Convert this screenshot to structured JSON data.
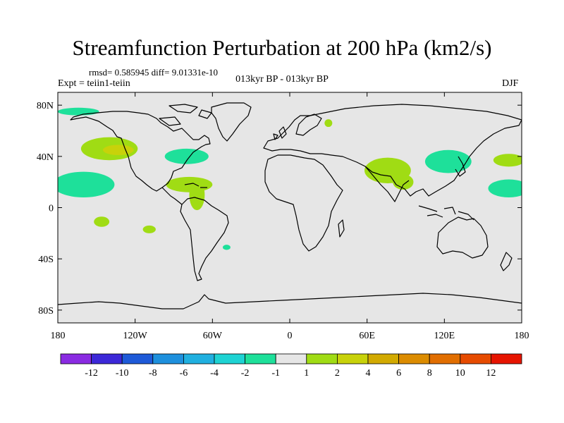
{
  "title": "Streamfunction Perturbation at 200 hPa (km2/s)",
  "stats_line": "rmsd= 0.585945 diff= 9.01331e-10",
  "left_label": "Expt = teiin1-teiin",
  "center_label": "013kyr BP - 013kyr BP",
  "right_label": "DJF",
  "map": {
    "projection": "cylindrical equidistant",
    "lon_range": [
      -180,
      180
    ],
    "lat_range": [
      -90,
      90
    ],
    "background_color": "#e6e6e6",
    "coastline_color": "#000000",
    "x_ticks": [
      {
        "lon": -180,
        "label": "180"
      },
      {
        "lon": -120,
        "label": "120W"
      },
      {
        "lon": -60,
        "label": "60W"
      },
      {
        "lon": 0,
        "label": "0"
      },
      {
        "lon": 60,
        "label": "60E"
      },
      {
        "lon": 120,
        "label": "120E"
      },
      {
        "lon": 180,
        "label": "180"
      }
    ],
    "y_ticks": [
      {
        "lat": 80,
        "label": "80N"
      },
      {
        "lat": 40,
        "label": "40N"
      },
      {
        "lat": 0,
        "label": "0"
      },
      {
        "lat": -40,
        "label": "40S"
      },
      {
        "lat": -80,
        "label": "80S"
      }
    ],
    "anomaly_patches": [
      {
        "lon": -164,
        "lat": 75,
        "rlon": 16,
        "rlat": 3,
        "level": -2
      },
      {
        "lon": -140,
        "lat": 46,
        "rlon": 22,
        "rlat": 9,
        "level": 2
      },
      {
        "lon": -133,
        "lat": 45,
        "rlon": 12,
        "rlat": 4,
        "level": 4
      },
      {
        "lon": -160,
        "lat": 18,
        "rlon": 24,
        "rlat": 10,
        "level": -2
      },
      {
        "lon": -80,
        "lat": 40,
        "rlon": 17,
        "rlat": 6,
        "level": -2
      },
      {
        "lon": -78,
        "lat": 18,
        "rlon": 18,
        "rlat": 6,
        "level": 2
      },
      {
        "lon": -72,
        "lat": 10,
        "rlon": 6,
        "rlat": 12,
        "level": 2
      },
      {
        "lon": -146,
        "lat": -11,
        "rlon": 6,
        "rlat": 4,
        "level": 2
      },
      {
        "lon": -109,
        "lat": -17,
        "rlon": 5,
        "rlat": 3,
        "level": 2
      },
      {
        "lon": -49,
        "lat": -31,
        "rlon": 3,
        "rlat": 2,
        "level": -2
      },
      {
        "lon": 30,
        "lat": 66,
        "rlon": 3,
        "rlat": 3,
        "level": 2
      },
      {
        "lon": 76,
        "lat": 29,
        "rlon": 18,
        "rlat": 10,
        "level": 2
      },
      {
        "lon": 88,
        "lat": 20,
        "rlon": 8,
        "rlat": 6,
        "level": 2
      },
      {
        "lon": 123,
        "lat": 36,
        "rlon": 18,
        "rlat": 9,
        "level": -2
      },
      {
        "lon": 170,
        "lat": 37,
        "rlon": 12,
        "rlat": 5,
        "level": 2
      },
      {
        "lon": 170,
        "lat": 15,
        "rlon": 16,
        "rlat": 7,
        "level": -2
      }
    ]
  },
  "colorbar": {
    "colors": [
      "#8a2be2",
      "#3c28d8",
      "#1e5ad8",
      "#1e90dd",
      "#20b0e0",
      "#1ed3d3",
      "#1ee09a",
      "#e6e6e6",
      "#a0dc14",
      "#c8d20a",
      "#d2aa00",
      "#dc8c00",
      "#e16e00",
      "#e64b00",
      "#e61400"
    ],
    "level_colors": {
      "-2": "#1ee09a",
      "2": "#a0dc14",
      "4": "#c8d20a"
    },
    "labels": [
      "-12",
      "-10",
      "-8",
      "-6",
      "-4",
      "-2",
      "-1",
      "1",
      "2",
      "4",
      "6",
      "8",
      "10",
      "12"
    ]
  }
}
